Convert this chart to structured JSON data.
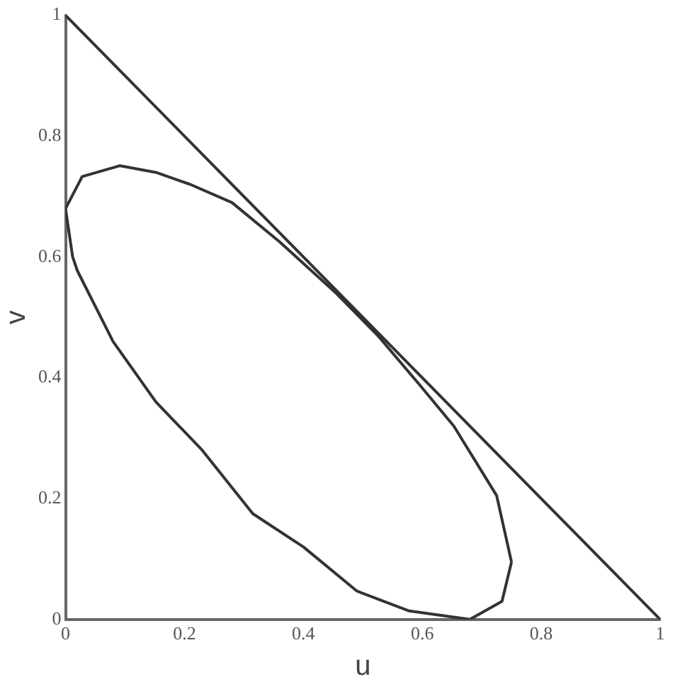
{
  "chart_data": {
    "type": "line",
    "xlabel": "u",
    "ylabel": "v",
    "xlim": [
      0,
      1
    ],
    "ylim": [
      0,
      1
    ],
    "xticks": [
      0,
      0.2,
      0.4,
      0.6,
      0.8,
      1
    ],
    "yticks": [
      0,
      0.2,
      0.4,
      0.6,
      0.8,
      1
    ],
    "grid": false,
    "legend": false,
    "marker": "none",
    "line_style": "solid",
    "series": [
      {
        "color": "#333333",
        "x": [
          0,
          1
        ],
        "values": [
          1,
          0
        ]
      },
      {
        "color": "#333333",
        "x": [
          0,
          0.028,
          0.091,
          0.152,
          0.21,
          0.28,
          0.36,
          0.455,
          0.525,
          0.594,
          0.653,
          0.725,
          0.75
        ],
        "values": [
          0.68,
          0.733,
          0.751,
          0.74,
          0.72,
          0.69,
          0.625,
          0.54,
          0.47,
          0.39,
          0.32,
          0.205,
          0.095
        ]
      },
      {
        "color": "#333333",
        "x": [
          0,
          0.012,
          0.02,
          0.08,
          0.152,
          0.23,
          0.315,
          0.4,
          0.49,
          0.578,
          0.68,
          0.734,
          0.75
        ],
        "values": [
          0.68,
          0.6,
          0.577,
          0.46,
          0.36,
          0.28,
          0.175,
          0.12,
          0.047,
          0.014,
          0,
          0.03,
          0.095
        ]
      }
    ]
  }
}
